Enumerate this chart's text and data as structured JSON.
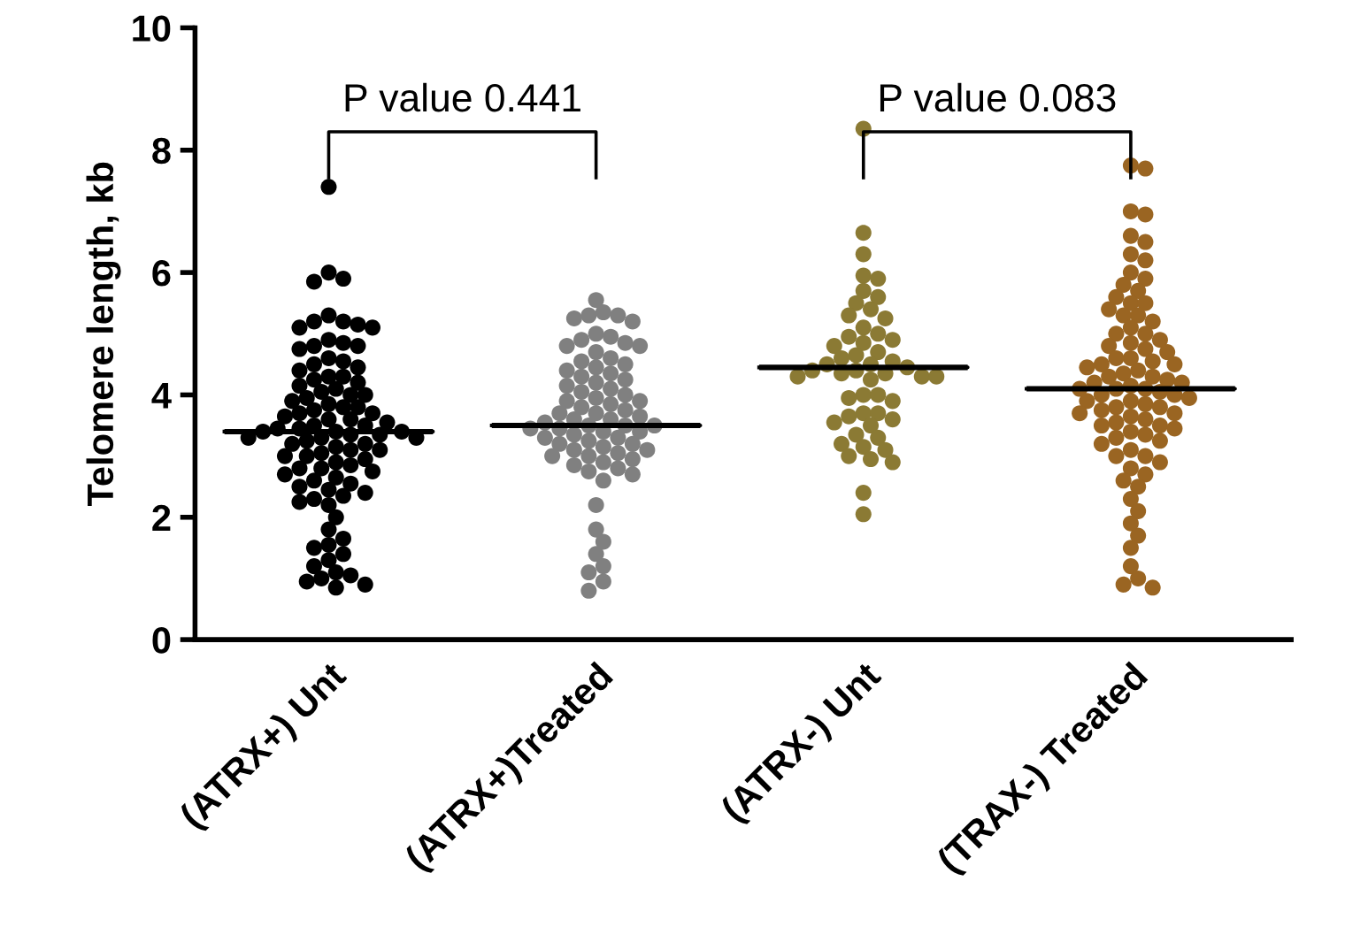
{
  "chart_data": {
    "type": "scatter",
    "ylabel": "Telomere length, kb",
    "categories": [
      "(ATRX+) Unt",
      "(ATRX+)Treated",
      "(ATRX-) Unt",
      "(TRAX-) Treated"
    ],
    "ylim": [
      0,
      10
    ],
    "yticks": [
      0,
      2,
      4,
      6,
      8,
      10
    ],
    "grid": false,
    "legend": false,
    "marker": "circle",
    "annotations": [
      "P value 0.441",
      "P value 0.083"
    ],
    "series": [
      {
        "color": "#000000",
        "x": [
          "(ATRX+) Unt",
          "(ATRX+) Unt",
          "(ATRX+) Unt",
          "(ATRX+) Unt",
          "(ATRX+) Unt",
          "(ATRX+) Unt",
          "(ATRX+) Unt",
          "(ATRX+) Unt",
          "(ATRX+) Unt",
          "(ATRX+) Unt",
          "(ATRX+) Unt",
          "(ATRX+) Unt",
          "(ATRX+) Unt",
          "(ATRX+) Unt",
          "(ATRX+) Unt",
          "(ATRX+) Unt",
          "(ATRX+) Unt",
          "(ATRX+) Unt",
          "(ATRX+) Unt",
          "(ATRX+) Unt",
          "(ATRX+) Unt",
          "(ATRX+) Unt",
          "(ATRX+) Unt",
          "(ATRX+) Unt",
          "(ATRX+) Unt",
          "(ATRX+) Unt",
          "(ATRX+) Unt",
          "(ATRX+) Unt",
          "(ATRX+) Unt",
          "(ATRX+) Unt",
          "(ATRX+) Unt",
          "(ATRX+) Unt",
          "(ATRX+) Unt",
          "(ATRX+) Unt",
          "(ATRX+) Unt",
          "(ATRX+) Unt",
          "(ATRX+) Unt",
          "(ATRX+) Unt",
          "(ATRX+) Unt",
          "(ATRX+) Unt",
          "(ATRX+) Unt",
          "(ATRX+) Unt",
          "(ATRX+) Unt",
          "(ATRX+) Unt",
          "(ATRX+) Unt",
          "(ATRX+) Unt",
          "(ATRX+) Unt",
          "(ATRX+) Unt",
          "(ATRX+) Unt",
          "(ATRX+) Unt",
          "(ATRX+) Unt",
          "(ATRX+) Unt",
          "(ATRX+) Unt",
          "(ATRX+) Unt",
          "(ATRX+) Unt",
          "(ATRX+) Unt",
          "(ATRX+) Unt",
          "(ATRX+) Unt",
          "(ATRX+) Unt",
          "(ATRX+) Unt",
          "(ATRX+) Unt",
          "(ATRX+) Unt",
          "(ATRX+) Unt",
          "(ATRX+) Unt",
          "(ATRX+) Unt",
          "(ATRX+) Unt",
          "(ATRX+) Unt",
          "(ATRX+) Unt",
          "(ATRX+) Unt",
          "(ATRX+) Unt",
          "(ATRX+) Unt",
          "(ATRX+) Unt",
          "(ATRX+) Unt",
          "(ATRX+) Unt",
          "(ATRX+) Unt",
          "(ATRX+) Unt",
          "(ATRX+) Unt",
          "(ATRX+) Unt",
          "(ATRX+) Unt",
          "(ATRX+) Unt",
          "(ATRX+) Unt",
          "(ATRX+) Unt",
          "(ATRX+) Unt",
          "(ATRX+) Unt",
          "(ATRX+) Unt",
          "(ATRX+) Unt",
          "(ATRX+) Unt",
          "(ATRX+) Unt",
          "(ATRX+) Unt",
          "(ATRX+) Unt",
          "(ATRX+) Unt",
          "(ATRX+) Unt",
          "(ATRX+) Unt"
        ],
        "values": [
          7.4,
          6.0,
          5.9,
          5.85,
          5.3,
          5.2,
          5.2,
          5.15,
          5.1,
          5.1,
          4.9,
          4.85,
          4.8,
          4.8,
          4.75,
          4.6,
          4.55,
          4.5,
          4.45,
          4.4,
          4.3,
          4.3,
          4.25,
          4.2,
          4.15,
          4.1,
          4.05,
          4.0,
          4.0,
          3.95,
          3.9,
          3.85,
          3.8,
          3.8,
          3.75,
          3.7,
          3.7,
          3.65,
          3.6,
          3.6,
          3.55,
          3.5,
          3.5,
          3.45,
          3.45,
          3.4,
          3.4,
          3.4,
          3.35,
          3.35,
          3.3,
          3.3,
          3.3,
          3.25,
          3.2,
          3.2,
          3.15,
          3.1,
          3.1,
          3.05,
          3.0,
          3.0,
          2.95,
          2.9,
          2.85,
          2.8,
          2.8,
          2.75,
          2.7,
          2.65,
          2.6,
          2.55,
          2.5,
          2.45,
          2.4,
          2.35,
          2.3,
          2.25,
          2.2,
          2.0,
          1.8,
          1.65,
          1.55,
          1.5,
          1.4,
          1.3,
          1.2,
          1.1,
          1.05,
          1.0,
          0.95,
          0.9,
          0.85
        ]
      },
      {
        "color": "#808080",
        "x": [
          "(ATRX+)Treated",
          "(ATRX+)Treated",
          "(ATRX+)Treated",
          "(ATRX+)Treated",
          "(ATRX+)Treated",
          "(ATRX+)Treated",
          "(ATRX+)Treated",
          "(ATRX+)Treated",
          "(ATRX+)Treated",
          "(ATRX+)Treated",
          "(ATRX+)Treated",
          "(ATRX+)Treated",
          "(ATRX+)Treated",
          "(ATRX+)Treated",
          "(ATRX+)Treated",
          "(ATRX+)Treated",
          "(ATRX+)Treated",
          "(ATRX+)Treated",
          "(ATRX+)Treated",
          "(ATRX+)Treated",
          "(ATRX+)Treated",
          "(ATRX+)Treated",
          "(ATRX+)Treated",
          "(ATRX+)Treated",
          "(ATRX+)Treated",
          "(ATRX+)Treated",
          "(ATRX+)Treated",
          "(ATRX+)Treated",
          "(ATRX+)Treated",
          "(ATRX+)Treated",
          "(ATRX+)Treated",
          "(ATRX+)Treated",
          "(ATRX+)Treated",
          "(ATRX+)Treated",
          "(ATRX+)Treated",
          "(ATRX+)Treated",
          "(ATRX+)Treated",
          "(ATRX+)Treated",
          "(ATRX+)Treated",
          "(ATRX+)Treated",
          "(ATRX+)Treated",
          "(ATRX+)Treated",
          "(ATRX+)Treated",
          "(ATRX+)Treated",
          "(ATRX+)Treated",
          "(ATRX+)Treated",
          "(ATRX+)Treated",
          "(ATRX+)Treated",
          "(ATRX+)Treated",
          "(ATRX+)Treated",
          "(ATRX+)Treated",
          "(ATRX+)Treated",
          "(ATRX+)Treated",
          "(ATRX+)Treated",
          "(ATRX+)Treated",
          "(ATRX+)Treated",
          "(ATRX+)Treated",
          "(ATRX+)Treated",
          "(ATRX+)Treated",
          "(ATRX+)Treated",
          "(ATRX+)Treated",
          "(ATRX+)Treated",
          "(ATRX+)Treated",
          "(ATRX+)Treated",
          "(ATRX+)Treated",
          "(ATRX+)Treated",
          "(ATRX+)Treated",
          "(ATRX+)Treated",
          "(ATRX+)Treated",
          "(ATRX+)Treated",
          "(ATRX+)Treated",
          "(ATRX+)Treated"
        ],
        "values": [
          5.55,
          5.35,
          5.3,
          5.3,
          5.25,
          5.2,
          5.0,
          4.95,
          4.9,
          4.85,
          4.8,
          4.8,
          4.7,
          4.6,
          4.55,
          4.5,
          4.45,
          4.4,
          4.35,
          4.3,
          4.25,
          4.2,
          4.15,
          4.1,
          4.05,
          4.0,
          3.95,
          3.9,
          3.9,
          3.85,
          3.8,
          3.75,
          3.7,
          3.7,
          3.65,
          3.6,
          3.6,
          3.55,
          3.5,
          3.5,
          3.5,
          3.45,
          3.45,
          3.4,
          3.4,
          3.35,
          3.3,
          3.3,
          3.25,
          3.2,
          3.2,
          3.15,
          3.1,
          3.1,
          3.05,
          3.0,
          3.0,
          2.95,
          2.9,
          2.85,
          2.8,
          2.75,
          2.7,
          2.6,
          2.2,
          1.8,
          1.6,
          1.4,
          1.2,
          1.1,
          0.95,
          0.8
        ]
      },
      {
        "color": "#8b7a34",
        "x": [
          "(ATRX-) Unt",
          "(ATRX-) Unt",
          "(ATRX-) Unt",
          "(ATRX-) Unt",
          "(ATRX-) Unt",
          "(ATRX-) Unt",
          "(ATRX-) Unt",
          "(ATRX-) Unt",
          "(ATRX-) Unt",
          "(ATRX-) Unt",
          "(ATRX-) Unt",
          "(ATRX-) Unt",
          "(ATRX-) Unt",
          "(ATRX-) Unt",
          "(ATRX-) Unt",
          "(ATRX-) Unt",
          "(ATRX-) Unt",
          "(ATRX-) Unt",
          "(ATRX-) Unt",
          "(ATRX-) Unt",
          "(ATRX-) Unt",
          "(ATRX-) Unt",
          "(ATRX-) Unt",
          "(ATRX-) Unt",
          "(ATRX-) Unt",
          "(ATRX-) Unt",
          "(ATRX-) Unt",
          "(ATRX-) Unt",
          "(ATRX-) Unt",
          "(ATRX-) Unt",
          "(ATRX-) Unt",
          "(ATRX-) Unt",
          "(ATRX-) Unt",
          "(ATRX-) Unt",
          "(ATRX-) Unt",
          "(ATRX-) Unt",
          "(ATRX-) Unt",
          "(ATRX-) Unt",
          "(ATRX-) Unt",
          "(ATRX-) Unt",
          "(ATRX-) Unt",
          "(ATRX-) Unt",
          "(ATRX-) Unt",
          "(ATRX-) Unt",
          "(ATRX-) Unt",
          "(ATRX-) Unt",
          "(ATRX-) Unt",
          "(ATRX-) Unt",
          "(ATRX-) Unt",
          "(ATRX-) Unt",
          "(ATRX-) Unt",
          "(ATRX-) Unt"
        ],
        "values": [
          8.35,
          6.65,
          6.3,
          5.95,
          5.9,
          5.7,
          5.6,
          5.5,
          5.4,
          5.3,
          5.25,
          5.1,
          5.0,
          4.95,
          4.9,
          4.85,
          4.8,
          4.7,
          4.65,
          4.6,
          4.55,
          4.5,
          4.5,
          4.45,
          4.4,
          4.4,
          4.35,
          4.35,
          4.3,
          4.3,
          4.3,
          4.25,
          4.0,
          4.0,
          3.95,
          3.9,
          3.7,
          3.7,
          3.65,
          3.6,
          3.55,
          3.5,
          3.35,
          3.3,
          3.2,
          3.15,
          3.1,
          3.0,
          2.95,
          2.9,
          2.4,
          2.05
        ]
      },
      {
        "color": "#9a6522",
        "x": [
          "(TRAX-) Treated",
          "(TRAX-) Treated",
          "(TRAX-) Treated",
          "(TRAX-) Treated",
          "(TRAX-) Treated",
          "(TRAX-) Treated",
          "(TRAX-) Treated",
          "(TRAX-) Treated",
          "(TRAX-) Treated",
          "(TRAX-) Treated",
          "(TRAX-) Treated",
          "(TRAX-) Treated",
          "(TRAX-) Treated",
          "(TRAX-) Treated",
          "(TRAX-) Treated",
          "(TRAX-) Treated",
          "(TRAX-) Treated",
          "(TRAX-) Treated",
          "(TRAX-) Treated",
          "(TRAX-) Treated",
          "(TRAX-) Treated",
          "(TRAX-) Treated",
          "(TRAX-) Treated",
          "(TRAX-) Treated",
          "(TRAX-) Treated",
          "(TRAX-) Treated",
          "(TRAX-) Treated",
          "(TRAX-) Treated",
          "(TRAX-) Treated",
          "(TRAX-) Treated",
          "(TRAX-) Treated",
          "(TRAX-) Treated",
          "(TRAX-) Treated",
          "(TRAX-) Treated",
          "(TRAX-) Treated",
          "(TRAX-) Treated",
          "(TRAX-) Treated",
          "(TRAX-) Treated",
          "(TRAX-) Treated",
          "(TRAX-) Treated",
          "(TRAX-) Treated",
          "(TRAX-) Treated",
          "(TRAX-) Treated",
          "(TRAX-) Treated",
          "(TRAX-) Treated",
          "(TRAX-) Treated",
          "(TRAX-) Treated",
          "(TRAX-) Treated",
          "(TRAX-) Treated",
          "(TRAX-) Treated",
          "(TRAX-) Treated",
          "(TRAX-) Treated",
          "(TRAX-) Treated",
          "(TRAX-) Treated",
          "(TRAX-) Treated",
          "(TRAX-) Treated",
          "(TRAX-) Treated",
          "(TRAX-) Treated",
          "(TRAX-) Treated",
          "(TRAX-) Treated",
          "(TRAX-) Treated",
          "(TRAX-) Treated",
          "(TRAX-) Treated",
          "(TRAX-) Treated",
          "(TRAX-) Treated",
          "(TRAX-) Treated",
          "(TRAX-) Treated",
          "(TRAX-) Treated",
          "(TRAX-) Treated",
          "(TRAX-) Treated",
          "(TRAX-) Treated",
          "(TRAX-) Treated",
          "(TRAX-) Treated",
          "(TRAX-) Treated",
          "(TRAX-) Treated",
          "(TRAX-) Treated",
          "(TRAX-) Treated",
          "(TRAX-) Treated",
          "(TRAX-) Treated",
          "(TRAX-) Treated",
          "(TRAX-) Treated",
          "(TRAX-) Treated",
          "(TRAX-) Treated",
          "(TRAX-) Treated"
        ],
        "values": [
          7.75,
          7.7,
          7.0,
          6.95,
          6.6,
          6.5,
          6.3,
          6.2,
          6.0,
          5.9,
          5.8,
          5.7,
          5.6,
          5.5,
          5.5,
          5.4,
          5.3,
          5.3,
          5.2,
          5.1,
          5.0,
          5.0,
          4.9,
          4.85,
          4.8,
          4.75,
          4.7,
          4.6,
          4.6,
          4.55,
          4.5,
          4.5,
          4.45,
          4.4,
          4.35,
          4.3,
          4.3,
          4.25,
          4.2,
          4.2,
          4.15,
          4.1,
          4.1,
          4.1,
          4.05,
          4.0,
          4.0,
          3.95,
          3.9,
          3.9,
          3.85,
          3.8,
          3.8,
          3.75,
          3.7,
          3.7,
          3.65,
          3.6,
          3.55,
          3.5,
          3.5,
          3.45,
          3.4,
          3.35,
          3.3,
          3.25,
          3.2,
          3.1,
          3.0,
          3.0,
          2.9,
          2.8,
          2.7,
          2.6,
          2.5,
          2.3,
          2.1,
          1.9,
          1.7,
          1.5,
          1.2,
          1.0,
          0.9,
          0.85
        ]
      },
      {
        "type": "box",
        "color": "#000000",
        "boxes": [
          {
            "low": 3.4,
            "q1": 3.4,
            "median": 3.4,
            "q3": 3.4,
            "high": 3.4
          },
          {
            "low": 3.5,
            "q1": 3.5,
            "median": 3.5,
            "q3": 3.5,
            "high": 3.5
          },
          {
            "low": 4.45,
            "q1": 4.45,
            "median": 4.45,
            "q3": 4.45,
            "high": 4.45
          },
          {
            "low": 4.1,
            "q1": 4.1,
            "median": 4.1,
            "q3": 4.1,
            "high": 4.1
          }
        ]
      }
    ]
  }
}
